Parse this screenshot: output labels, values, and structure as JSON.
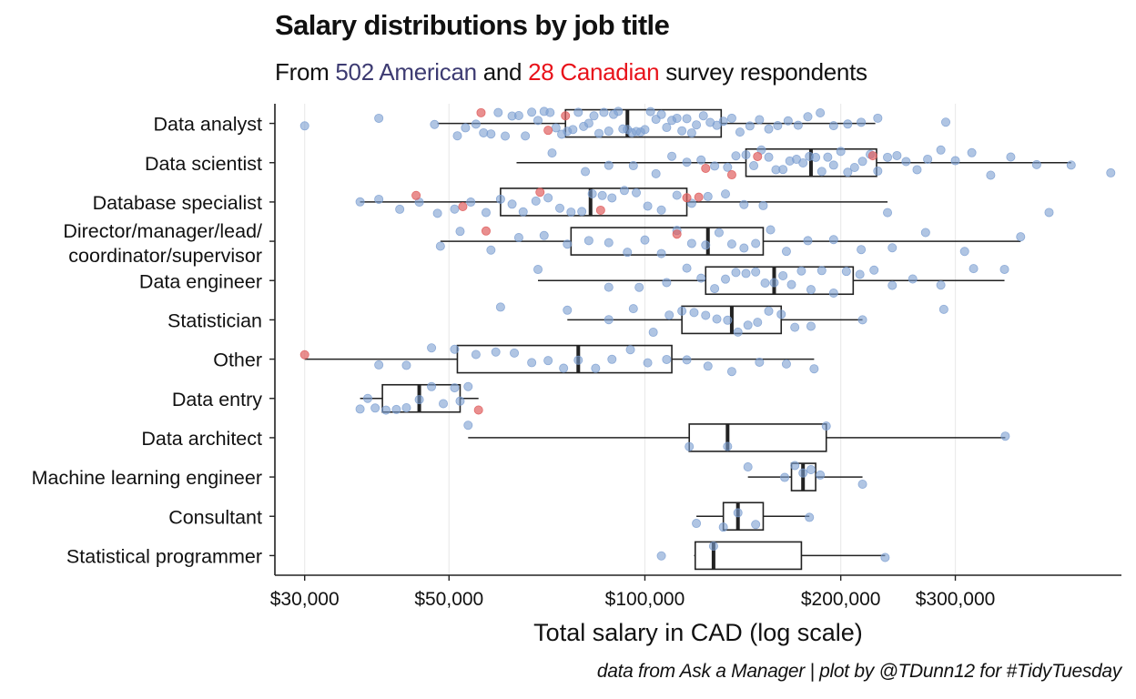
{
  "title": "Salary distributions by job title",
  "subtitle": {
    "prefix": "From ",
    "american": "502 American",
    "middle": " and ",
    "canadian": "28 Canadian",
    "suffix": " survey respondents"
  },
  "caption": "data from Ask a Manager | plot by @TDunn12 for #TidyTuesday",
  "colors": {
    "american": "#3d3b72",
    "canadian": "#e8121a",
    "american_points": "#7b9ed1",
    "canadian_points": "#e06060",
    "box": "#222222",
    "grid": "#ebebeb"
  },
  "chart_data": {
    "type": "boxplot",
    "title": "Salary distributions by job title",
    "xlabel": "Total salary in CAD (log scale)",
    "ylabel": "",
    "x_scale": "log10",
    "xlim": [
      27000,
      540000
    ],
    "x_ticks": [
      30000,
      50000,
      100000,
      200000,
      300000
    ],
    "x_tick_labels": [
      "$30,000",
      "$50,000",
      "$100,000",
      "$200,000",
      "$300,000"
    ],
    "grid": "vertical major lines",
    "series": [
      {
        "name": "American",
        "color": "#7b9ed1"
      },
      {
        "name": "Canadian",
        "color": "#e06060"
      }
    ],
    "categories": [
      {
        "label": "Data analyst",
        "min": 48000,
        "q1": 75500,
        "median": 94000,
        "q3": 131000,
        "max": 226000,
        "points_us": [
          30000,
          39000,
          47500,
          51500,
          53000,
          55000,
          56500,
          58000,
          59500,
          61000,
          62500,
          64000,
          65500,
          67000,
          68500,
          70000,
          71500,
          73000,
          74500,
          76000,
          77500,
          79000,
          80500,
          82000,
          83500,
          85000,
          86500,
          88000,
          89500,
          91000,
          92500,
          94000,
          95500,
          97000,
          98500,
          100000,
          102000,
          104000,
          106000,
          108000,
          110000,
          112000,
          114000,
          116000,
          118000,
          120000,
          123000,
          126000,
          129000,
          132000,
          136000,
          140000,
          145000,
          150000,
          155000,
          160000,
          166000,
          172000,
          178000,
          186000,
          195000,
          205000,
          215000,
          228000,
          290000
        ],
        "points_ca": [
          56000,
          71000,
          75500
        ]
      },
      {
        "label": "Data scientist",
        "min": 63500,
        "q1": 143000,
        "median": 180000,
        "q3": 227000,
        "max": 452000,
        "points_us": [
          72000,
          81000,
          88000,
          96000,
          104000,
          110000,
          116000,
          122000,
          128000,
          134000,
          138000,
          143000,
          147000,
          151000,
          155000,
          159000,
          163000,
          167000,
          171000,
          175000,
          179000,
          183000,
          187000,
          191000,
          195000,
          200000,
          205000,
          210000,
          216000,
          222000,
          228000,
          236000,
          244000,
          252000,
          262000,
          272000,
          285000,
          300000,
          318000,
          340000,
          365000,
          400000,
          452000,
          520000
        ],
        "points_ca": [
          124000,
          136000,
          149000,
          224000
        ]
      },
      {
        "label": "Database specialist",
        "min": 36500,
        "q1": 60000,
        "median": 82500,
        "q3": 116000,
        "max": 236000,
        "points_us": [
          36500,
          39000,
          42000,
          45000,
          48000,
          51000,
          54000,
          57000,
          60000,
          62500,
          65000,
          68000,
          71000,
          74000,
          77000,
          80000,
          83000,
          86000,
          89000,
          93000,
          97000,
          101000,
          106000,
          112000,
          118000,
          125000,
          133000,
          142000,
          152000,
          236000,
          418000
        ],
        "points_ca": [
          44500,
          52500,
          69000,
          85500,
          116000,
          121000
        ]
      },
      {
        "label": "Director/manager/lead/\ncoordinator/supervisor",
        "min": 48500,
        "q1": 77000,
        "median": 125000,
        "q3": 152000,
        "max": 378000,
        "points_us": [
          48500,
          52000,
          58000,
          64000,
          70000,
          76000,
          82000,
          88000,
          94000,
          100000,
          106000,
          112000,
          118000,
          124000,
          130000,
          136000,
          142000,
          148000,
          156000,
          165000,
          178000,
          195000,
          215000,
          240000,
          270000,
          310000,
          378000
        ],
        "points_ca": [
          57000,
          112000
        ]
      },
      {
        "label": "Data engineer",
        "min": 68500,
        "q1": 124000,
        "median": 158000,
        "q3": 209000,
        "max": 357000,
        "points_us": [
          68500,
          88000,
          98000,
          108000,
          116000,
          122000,
          128000,
          133000,
          138000,
          143000,
          148000,
          153000,
          158000,
          163000,
          168000,
          174000,
          180000,
          187000,
          195000,
          204000,
          214000,
          225000,
          240000,
          258000,
          285000,
          320000,
          357000
        ],
        "points_ca": []
      },
      {
        "label": "Statistician",
        "min": 76000,
        "q1": 114000,
        "median": 136000,
        "q3": 162000,
        "max": 216000,
        "points_us": [
          60000,
          76000,
          88000,
          96000,
          103000,
          109000,
          114000,
          119000,
          124000,
          129000,
          134000,
          139000,
          144000,
          149000,
          155000,
          162000,
          170000,
          180000,
          216000,
          288000
        ],
        "points_ca": []
      },
      {
        "label": "Other",
        "min": 30000,
        "q1": 51500,
        "median": 79000,
        "q3": 110000,
        "max": 182000,
        "points_us": [
          39000,
          43000,
          47000,
          51000,
          55000,
          59000,
          63000,
          67000,
          71000,
          75000,
          79000,
          84000,
          89000,
          95000,
          101000,
          108000,
          116000,
          125000,
          136000,
          150000,
          165000,
          182000
        ],
        "points_ca": [
          30000
        ]
      },
      {
        "label": "Data entry",
        "min": 36500,
        "q1": 39500,
        "median": 45000,
        "q3": 52000,
        "max": 55500,
        "points_us": [
          36500,
          37500,
          38500,
          40000,
          41500,
          43000,
          45000,
          47000,
          49000,
          51000,
          52000,
          53500
        ],
        "points_ca": [
          55500
        ]
      },
      {
        "label": "Data architect",
        "min": 53500,
        "q1": 117000,
        "median": 134000,
        "q3": 190000,
        "max": 358000,
        "points_us": [
          53500,
          117000,
          134000,
          190000,
          358000
        ],
        "points_ca": []
      },
      {
        "label": "Machine learning engineer",
        "min": 144000,
        "q1": 168000,
        "median": 175000,
        "q3": 183000,
        "max": 216000,
        "points_us": [
          144000,
          164000,
          170000,
          175000,
          180000,
          186000,
          216000
        ],
        "points_ca": []
      },
      {
        "label": "Consultant",
        "min": 120000,
        "q1": 132000,
        "median": 139000,
        "q3": 152000,
        "max": 179000,
        "points_us": [
          120000,
          132000,
          139000,
          148000,
          179000
        ],
        "points_ca": []
      },
      {
        "label": "Statistical programmer",
        "min": 119000,
        "q1": 119500,
        "median": 127500,
        "q3": 174000,
        "max": 234000,
        "points_us": [
          106000,
          127500,
          234000
        ],
        "points_ca": []
      }
    ]
  }
}
